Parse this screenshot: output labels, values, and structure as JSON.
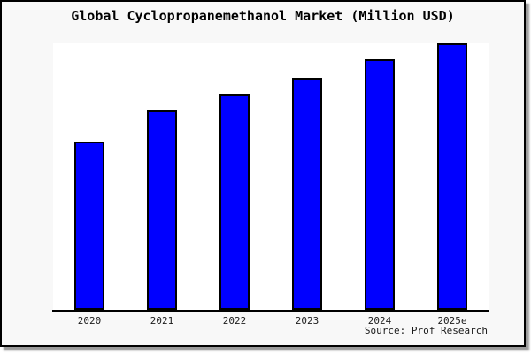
{
  "title": "Global Cyclopropanemethanol Market (Million USD)",
  "source": "Source: Prof Research",
  "colors": {
    "card_background": "#f8f8f8",
    "plot_background": "#ffffff",
    "bar_fill": "#0000ff",
    "bar_border": "#000000",
    "frame_border": "#000000",
    "shadow": "#9a9a9a",
    "text": "#000000"
  },
  "chart_data": {
    "type": "bar",
    "title": "Global Cyclopropanemethanol Market (Million USD)",
    "categories": [
      "2020",
      "2021",
      "2022",
      "2023",
      "2024",
      "2025e"
    ],
    "values": [
      63,
      75,
      81,
      87,
      94,
      100
    ],
    "xlabel": "",
    "ylabel": "",
    "ylim": [
      0,
      100
    ],
    "y_axis_labels_visible": false,
    "grid": false,
    "legend": false,
    "annotation": "Source: Prof Research"
  }
}
